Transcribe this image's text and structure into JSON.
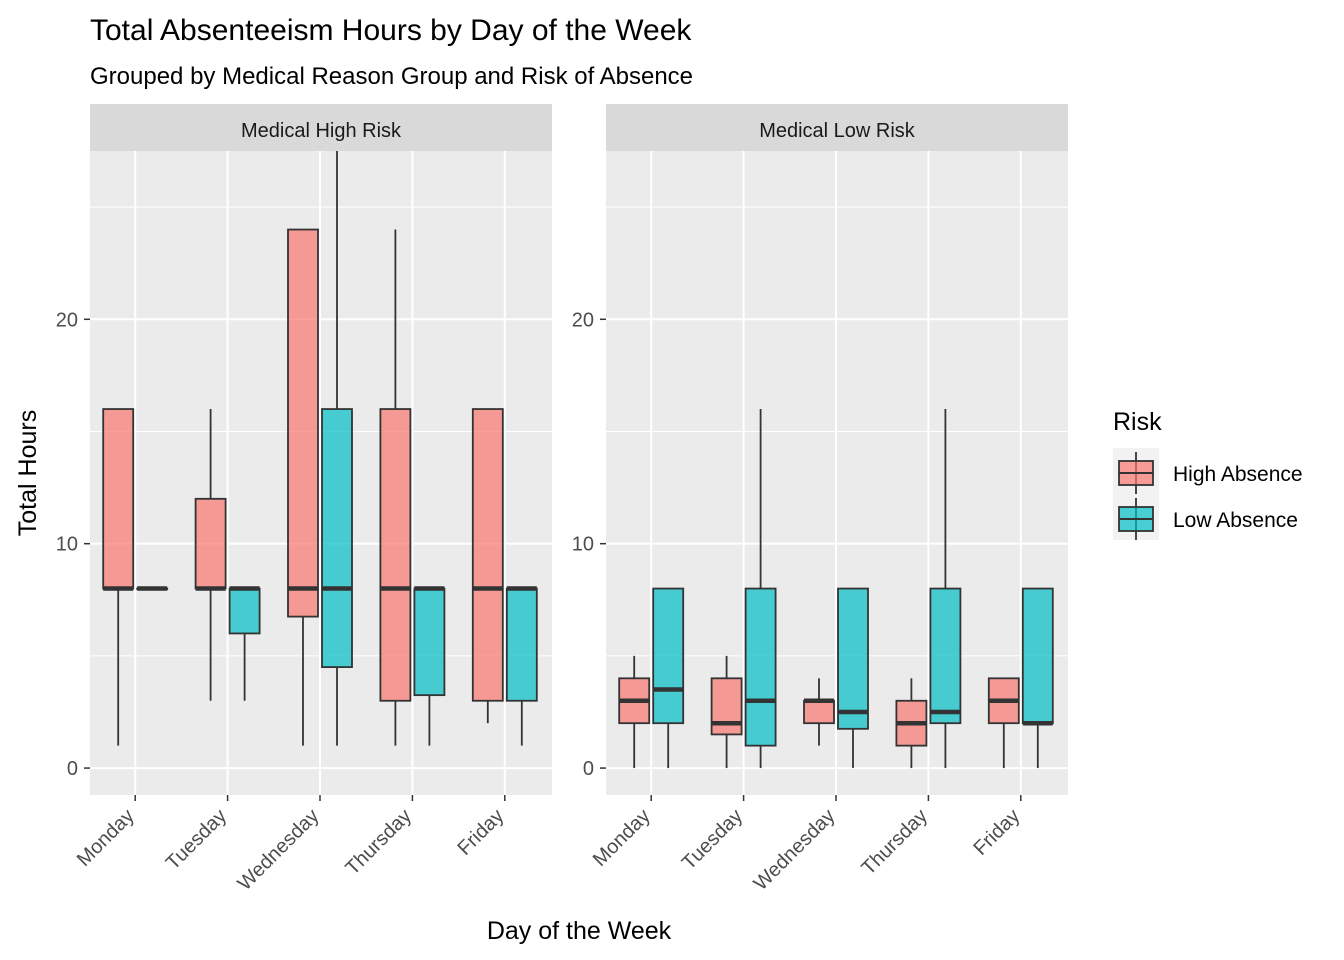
{
  "chart_data": {
    "type": "boxplot",
    "title": "Total Absenteeism Hours by Day of the Week",
    "subtitle": "Grouped by Medical Reason Group and Risk of Absence",
    "xlabel": "Day of the Week",
    "ylabel": "Total Hours",
    "ylim": [
      -1.2,
      27.5
    ],
    "yticks": [
      0,
      10,
      20
    ],
    "grid": true,
    "categories": [
      "Monday",
      "Tuesday",
      "Wednesday",
      "Thursday",
      "Friday"
    ],
    "legend": {
      "title": "Risk",
      "position": "right",
      "entries": [
        {
          "name": "High Absence",
          "color": "#F8766D"
        },
        {
          "name": "Low Absence",
          "color": "#00BFC4"
        }
      ]
    },
    "panels": [
      {
        "title": "Medical High Risk",
        "series": [
          {
            "name": "High Absence",
            "color": "#F8766D",
            "boxes": [
              {
                "min": 1,
                "q1": 8,
                "median": 8,
                "q3": 16,
                "max": 16
              },
              {
                "min": 3,
                "q1": 8,
                "median": 8,
                "q3": 12,
                "max": 16
              },
              {
                "min": 1,
                "q1": 6.75,
                "median": 8,
                "q3": 24,
                "max": 24
              },
              {
                "min": 1,
                "q1": 3,
                "median": 8,
                "q3": 16,
                "max": 24
              },
              {
                "min": 2,
                "q1": 3,
                "median": 8,
                "q3": 16,
                "max": 16
              }
            ]
          },
          {
            "name": "Low Absence",
            "color": "#00BFC4",
            "boxes": [
              {
                "min": 8,
                "q1": 8,
                "median": 8,
                "q3": 8,
                "max": 8
              },
              {
                "min": 3,
                "q1": 6,
                "median": 8,
                "q3": 8,
                "max": 8
              },
              {
                "min": 1,
                "q1": 4.5,
                "median": 8,
                "q3": 16,
                "max": 28
              },
              {
                "min": 1,
                "q1": 3.25,
                "median": 8,
                "q3": 8,
                "max": 8
              },
              {
                "min": 1,
                "q1": 3,
                "median": 8,
                "q3": 8,
                "max": 8
              }
            ]
          }
        ]
      },
      {
        "title": "Medical Low Risk",
        "series": [
          {
            "name": "High Absence",
            "color": "#F8766D",
            "boxes": [
              {
                "min": 0,
                "q1": 2,
                "median": 3,
                "q3": 4,
                "max": 5
              },
              {
                "min": 0,
                "q1": 1.5,
                "median": 2,
                "q3": 4,
                "max": 5
              },
              {
                "min": 1,
                "q1": 2,
                "median": 3,
                "q3": 3,
                "max": 4
              },
              {
                "min": 0,
                "q1": 1,
                "median": 2,
                "q3": 3,
                "max": 4
              },
              {
                "min": 0,
                "q1": 2,
                "median": 3,
                "q3": 4,
                "max": 4
              }
            ]
          },
          {
            "name": "Low Absence",
            "color": "#00BFC4",
            "boxes": [
              {
                "min": 0,
                "q1": 2,
                "median": 3.5,
                "q3": 8,
                "max": 8
              },
              {
                "min": 0,
                "q1": 1,
                "median": 3,
                "q3": 8,
                "max": 16
              },
              {
                "min": 0,
                "q1": 1.75,
                "median": 2.5,
                "q3": 8,
                "max": 8
              },
              {
                "min": 0,
                "q1": 2,
                "median": 2.5,
                "q3": 8,
                "max": 16
              },
              {
                "min": 0,
                "q1": 2,
                "median": 2,
                "q3": 8,
                "max": 8
              }
            ]
          }
        ]
      }
    ]
  }
}
